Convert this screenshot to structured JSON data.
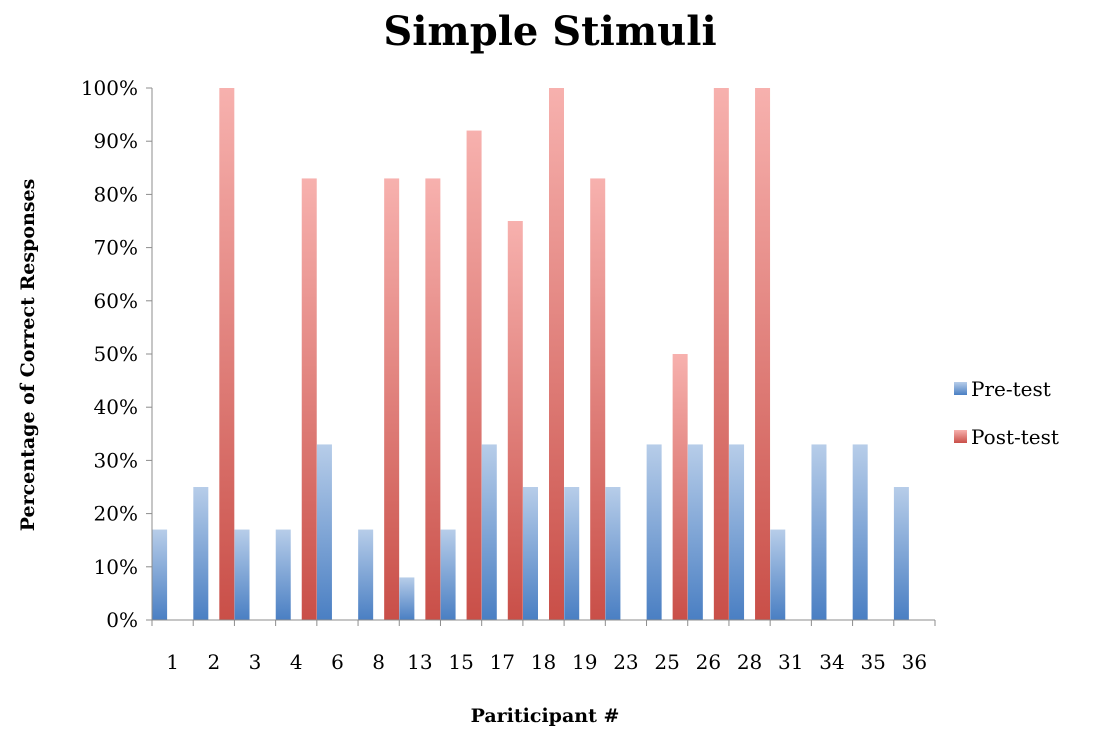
{
  "chart_data": {
    "type": "bar",
    "title": "Simple Stimuli",
    "xlabel": "Pariticipant #",
    "ylabel": "Percentage of Correct Responses",
    "ylim": [
      0,
      100
    ],
    "yticks": [
      "0%",
      "10%",
      "20%",
      "30%",
      "40%",
      "50%",
      "60%",
      "70%",
      "80%",
      "90%",
      "100%"
    ],
    "grid": false,
    "legend_position": "right",
    "categories": [
      "1",
      "2",
      "3",
      "4",
      "6",
      "8",
      "13",
      "15",
      "17",
      "18",
      "19",
      "23",
      "25",
      "26",
      "28",
      "31",
      "34",
      "35",
      "36"
    ],
    "series": [
      {
        "name": "Pre-test",
        "color": "#4f81bd",
        "values": [
          17,
          25,
          17,
          17,
          33,
          17,
          8,
          17,
          33,
          25,
          25,
          25,
          33,
          33,
          33,
          17,
          33,
          33,
          25
        ]
      },
      {
        "name": "Post-test",
        "color": "#c0504d",
        "values": [
          0,
          100,
          0,
          83,
          0,
          83,
          83,
          92,
          75,
          100,
          83,
          0,
          50,
          100,
          100,
          0,
          0,
          0,
          0
        ]
      }
    ]
  }
}
